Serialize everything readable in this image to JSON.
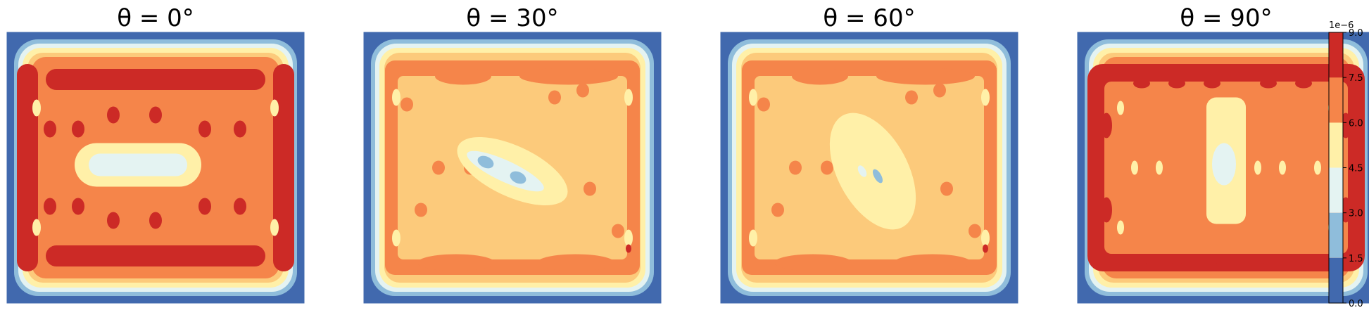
{
  "chart_data": [
    {
      "type": "heatmap",
      "title": "θ = 0°",
      "pattern": "horizontal-bands"
    },
    {
      "type": "heatmap",
      "title": "θ = 30°",
      "pattern": "diagonal-30"
    },
    {
      "type": "heatmap",
      "title": "θ = 60°",
      "pattern": "diagonal-60"
    },
    {
      "type": "heatmap",
      "title": "θ = 90°",
      "pattern": "vertical-core"
    }
  ],
  "colorbar": {
    "levels": [
      0.0,
      1.5,
      3.0,
      4.5,
      6.0,
      7.5,
      9.0
    ],
    "tick_labels": [
      "0.0",
      "1.5",
      "3.0",
      "4.5",
      "6.0",
      "7.5",
      "9.0"
    ],
    "exponent_label": "1e−6",
    "colors": [
      "#4169ae",
      "#8fbddb",
      "#e4f3f2",
      "#fff0a8",
      "#fcca7b",
      "#f5854a",
      "#cc2a26"
    ]
  }
}
